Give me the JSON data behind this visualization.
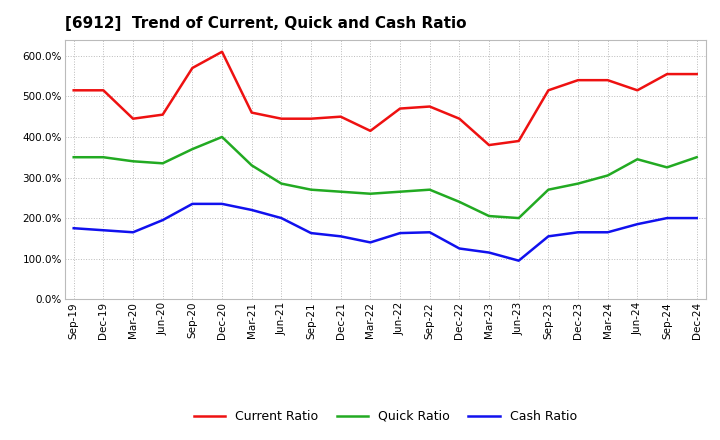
{
  "title": "[6912]  Trend of Current, Quick and Cash Ratio",
  "x_labels": [
    "Sep-19",
    "Dec-19",
    "Mar-20",
    "Jun-20",
    "Sep-20",
    "Dec-20",
    "Mar-21",
    "Jun-21",
    "Sep-21",
    "Dec-21",
    "Mar-22",
    "Jun-22",
    "Sep-22",
    "Dec-22",
    "Mar-23",
    "Jun-23",
    "Sep-23",
    "Dec-23",
    "Mar-24",
    "Jun-24",
    "Sep-24",
    "Dec-24"
  ],
  "current_ratio": [
    515,
    515,
    445,
    455,
    570,
    610,
    460,
    445,
    445,
    450,
    415,
    470,
    475,
    445,
    380,
    390,
    515,
    540,
    540,
    515,
    555,
    555
  ],
  "quick_ratio": [
    350,
    350,
    340,
    335,
    370,
    400,
    330,
    285,
    270,
    265,
    260,
    265,
    270,
    240,
    205,
    200,
    270,
    285,
    305,
    345,
    325,
    350
  ],
  "cash_ratio": [
    175,
    170,
    165,
    195,
    235,
    235,
    220,
    200,
    163,
    155,
    140,
    163,
    165,
    125,
    115,
    95,
    155,
    165,
    165,
    185,
    200,
    200
  ],
  "current_color": "#EE1111",
  "quick_color": "#22AA22",
  "cash_color": "#1111EE",
  "ylim": [
    0,
    640
  ],
  "yticks": [
    0,
    100,
    200,
    300,
    400,
    500,
    600
  ],
  "background_color": "#FFFFFF",
  "grid_color": "#BBBBBB",
  "title_fontsize": 11,
  "legend_fontsize": 9,
  "tick_fontsize": 7.5,
  "linewidth": 1.8
}
